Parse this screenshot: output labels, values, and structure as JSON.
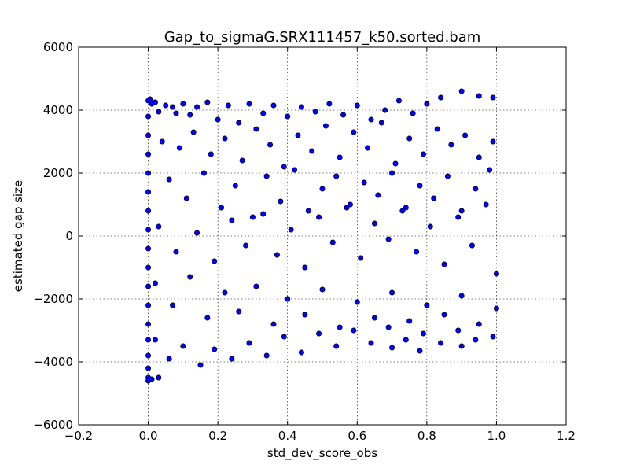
{
  "chart_data": {
    "type": "scatter",
    "title": "Gap_to_sigmaG.SRX111457_k50.sorted.bam",
    "xlabel": "std_dev_score_obs",
    "ylabel": "estimated gap size",
    "xlim": [
      -0.2,
      1.2
    ],
    "ylim": [
      -6000,
      6000
    ],
    "xticks": [
      "−0.2",
      "0.0",
      "0.2",
      "0.4",
      "0.6",
      "0.8",
      "1.0",
      "1.2"
    ],
    "yticks": [
      "−6000",
      "−4000",
      "−2000",
      "0",
      "2000",
      "4000",
      "6000"
    ],
    "grid": true,
    "marker_color": "#0000ff",
    "edge_color": "#000000",
    "series": [
      {
        "points": [
          [
            0.0,
            -4600
          ],
          [
            0.0,
            -4500
          ],
          [
            0.0,
            -4200
          ],
          [
            0.0,
            -3800
          ],
          [
            0.0,
            -3300
          ],
          [
            0.0,
            -2800
          ],
          [
            0.0,
            -2200
          ],
          [
            0.0,
            -1600
          ],
          [
            0.0,
            -1000
          ],
          [
            0.0,
            -400
          ],
          [
            0.0,
            200
          ],
          [
            0.0,
            800
          ],
          [
            0.0,
            1400
          ],
          [
            0.0,
            2000
          ],
          [
            0.0,
            2600
          ],
          [
            0.0,
            3200
          ],
          [
            0.0,
            3800
          ],
          [
            0.0,
            4300
          ],
          [
            0.005,
            4350
          ],
          [
            0.01,
            -4550
          ],
          [
            0.01,
            4200
          ],
          [
            0.02,
            4250
          ],
          [
            0.03,
            -4500
          ],
          [
            0.03,
            3950
          ],
          [
            0.05,
            4150
          ],
          [
            0.07,
            4100
          ],
          [
            0.08,
            3900
          ],
          [
            0.1,
            4200
          ],
          [
            0.12,
            3850
          ],
          [
            0.14,
            4100
          ],
          [
            0.17,
            4250
          ],
          [
            0.2,
            3700
          ],
          [
            0.23,
            4150
          ],
          [
            0.26,
            3600
          ],
          [
            0.29,
            4200
          ],
          [
            0.33,
            3900
          ],
          [
            0.36,
            4150
          ],
          [
            0.4,
            3800
          ],
          [
            0.44,
            4100
          ],
          [
            0.48,
            3950
          ],
          [
            0.52,
            4200
          ],
          [
            0.56,
            3850
          ],
          [
            0.6,
            4150
          ],
          [
            0.64,
            3700
          ],
          [
            0.68,
            4000
          ],
          [
            0.72,
            4300
          ],
          [
            0.76,
            3900
          ],
          [
            0.8,
            4200
          ],
          [
            0.84,
            4400
          ],
          [
            0.9,
            4600
          ],
          [
            0.95,
            4450
          ],
          [
            0.99,
            4400
          ],
          [
            0.04,
            3000
          ],
          [
            0.09,
            2800
          ],
          [
            0.13,
            3300
          ],
          [
            0.18,
            2600
          ],
          [
            0.22,
            3100
          ],
          [
            0.27,
            2400
          ],
          [
            0.31,
            3400
          ],
          [
            0.35,
            2900
          ],
          [
            0.39,
            2200
          ],
          [
            0.43,
            3200
          ],
          [
            0.47,
            2700
          ],
          [
            0.51,
            3500
          ],
          [
            0.55,
            2500
          ],
          [
            0.59,
            3300
          ],
          [
            0.63,
            2800
          ],
          [
            0.67,
            3600
          ],
          [
            0.71,
            2300
          ],
          [
            0.75,
            3100
          ],
          [
            0.79,
            2600
          ],
          [
            0.83,
            3400
          ],
          [
            0.87,
            2900
          ],
          [
            0.91,
            3200
          ],
          [
            0.95,
            2500
          ],
          [
            0.99,
            3000
          ],
          [
            0.06,
            1800
          ],
          [
            0.11,
            1200
          ],
          [
            0.16,
            2000
          ],
          [
            0.21,
            900
          ],
          [
            0.25,
            1600
          ],
          [
            0.3,
            600
          ],
          [
            0.34,
            1900
          ],
          [
            0.38,
            1100
          ],
          [
            0.42,
            2100
          ],
          [
            0.46,
            800
          ],
          [
            0.5,
            1500
          ],
          [
            0.54,
            1900
          ],
          [
            0.58,
            1000
          ],
          [
            0.62,
            1700
          ],
          [
            0.66,
            1300
          ],
          [
            0.7,
            2000
          ],
          [
            0.74,
            900
          ],
          [
            0.78,
            1600
          ],
          [
            0.82,
            1200
          ],
          [
            0.86,
            1900
          ],
          [
            0.9,
            800
          ],
          [
            0.94,
            1500
          ],
          [
            0.98,
            2100
          ],
          [
            0.03,
            300
          ],
          [
            0.08,
            -500
          ],
          [
            0.14,
            100
          ],
          [
            0.19,
            -800
          ],
          [
            0.24,
            500
          ],
          [
            0.28,
            -300
          ],
          [
            0.33,
            700
          ],
          [
            0.37,
            -600
          ],
          [
            0.41,
            200
          ],
          [
            0.45,
            -1000
          ],
          [
            0.49,
            600
          ],
          [
            0.53,
            -200
          ],
          [
            0.57,
            900
          ],
          [
            0.61,
            -700
          ],
          [
            0.65,
            400
          ],
          [
            0.69,
            -100
          ],
          [
            0.73,
            800
          ],
          [
            0.77,
            -500
          ],
          [
            0.81,
            300
          ],
          [
            0.85,
            -900
          ],
          [
            0.89,
            600
          ],
          [
            0.93,
            -300
          ],
          [
            0.97,
            1000
          ],
          [
            1.0,
            -1200
          ],
          [
            0.02,
            -1500
          ],
          [
            0.07,
            -2200
          ],
          [
            0.12,
            -1300
          ],
          [
            0.17,
            -2600
          ],
          [
            0.22,
            -1800
          ],
          [
            0.26,
            -2400
          ],
          [
            0.31,
            -1600
          ],
          [
            0.36,
            -2800
          ],
          [
            0.4,
            -2000
          ],
          [
            0.45,
            -2500
          ],
          [
            0.5,
            -1700
          ],
          [
            0.55,
            -2900
          ],
          [
            0.6,
            -2100
          ],
          [
            0.65,
            -2600
          ],
          [
            0.7,
            -1800
          ],
          [
            0.75,
            -2700
          ],
          [
            0.8,
            -2200
          ],
          [
            0.85,
            -2500
          ],
          [
            0.9,
            -1900
          ],
          [
            0.95,
            -2800
          ],
          [
            1.0,
            -2300
          ],
          [
            0.02,
            -3300
          ],
          [
            0.06,
            -3900
          ],
          [
            0.1,
            -3500
          ],
          [
            0.15,
            -4100
          ],
          [
            0.19,
            -3600
          ],
          [
            0.24,
            -3900
          ],
          [
            0.29,
            -3400
          ],
          [
            0.34,
            -3800
          ],
          [
            0.39,
            -3200
          ],
          [
            0.44,
            -3700
          ],
          [
            0.49,
            -3100
          ],
          [
            0.54,
            -3500
          ],
          [
            0.59,
            -3000
          ],
          [
            0.64,
            -3400
          ],
          [
            0.69,
            -2900
          ],
          [
            0.74,
            -3300
          ],
          [
            0.79,
            -3100
          ],
          [
            0.84,
            -3400
          ],
          [
            0.89,
            -3000
          ],
          [
            0.94,
            -3300
          ],
          [
            0.99,
            -3200
          ],
          [
            0.78,
            -3650
          ],
          [
            0.9,
            -3500
          ],
          [
            0.7,
            -3550
          ]
        ]
      }
    ]
  }
}
